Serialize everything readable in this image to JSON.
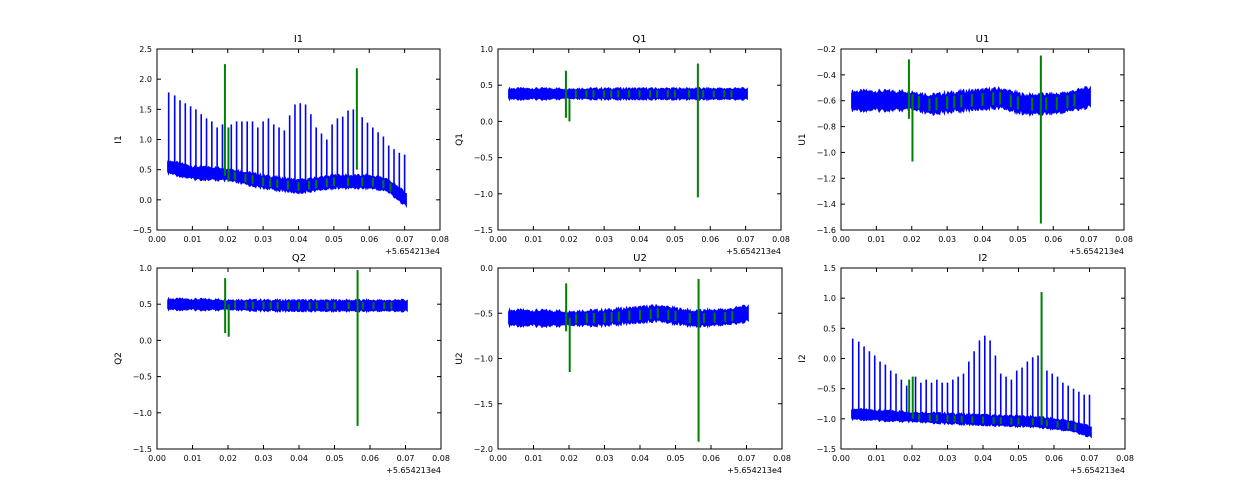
{
  "figure": {
    "background": "#ffffff",
    "series_colors": {
      "blue": "#0000ff",
      "green": "#008000"
    }
  },
  "chart_data": [
    {
      "type": "line",
      "title": "I1",
      "xlabel": "",
      "ylabel": "I1",
      "xlim": [
        0.0,
        0.08
      ],
      "ylim": [
        -0.5,
        2.5
      ],
      "xticks": [
        "0.00",
        "0.01",
        "0.02",
        "0.03",
        "0.04",
        "0.05",
        "0.06",
        "0.07",
        "0.08"
      ],
      "yticks": [
        "−0.5",
        "0.0",
        "0.5",
        "1.0",
        "1.5",
        "2.0",
        "2.5"
      ],
      "x_offset_label": "+5.654213e4",
      "grid": false,
      "series": [
        {
          "color": "#0000ff",
          "style": "band_with_spikes",
          "x_start": 0.003,
          "x_end": 0.0705,
          "baseline": [
            [
              0.003,
              0.55
            ],
            [
              0.01,
              0.45
            ],
            [
              0.02,
              0.42
            ],
            [
              0.03,
              0.3
            ],
            [
              0.04,
              0.22
            ],
            [
              0.05,
              0.3
            ],
            [
              0.06,
              0.3
            ],
            [
              0.065,
              0.25
            ],
            [
              0.0705,
              0.0
            ]
          ],
          "band_half_width": 0.1,
          "spikes": [
            [
              0.0033,
              1.78
            ],
            [
              0.005,
              1.73
            ],
            [
              0.0065,
              1.65
            ],
            [
              0.008,
              1.6
            ],
            [
              0.0095,
              1.55
            ],
            [
              0.011,
              1.5
            ],
            [
              0.0125,
              1.42
            ],
            [
              0.014,
              1.35
            ],
            [
              0.0155,
              1.3
            ],
            [
              0.017,
              1.2
            ],
            [
              0.0185,
              1.25
            ],
            [
              0.021,
              1.25
            ],
            [
              0.0225,
              1.3
            ],
            [
              0.024,
              1.3
            ],
            [
              0.0255,
              1.3
            ],
            [
              0.027,
              1.3
            ],
            [
              0.0285,
              1.2
            ],
            [
              0.03,
              1.3
            ],
            [
              0.0315,
              1.35
            ],
            [
              0.033,
              1.25
            ],
            [
              0.0345,
              1.2
            ],
            [
              0.036,
              1.15
            ],
            [
              0.0375,
              1.4
            ],
            [
              0.039,
              1.58
            ],
            [
              0.0405,
              1.6
            ],
            [
              0.042,
              1.58
            ],
            [
              0.0435,
              1.42
            ],
            [
              0.045,
              1.2
            ],
            [
              0.0465,
              1.1
            ],
            [
              0.048,
              1.0
            ],
            [
              0.0495,
              1.25
            ],
            [
              0.051,
              1.35
            ],
            [
              0.0525,
              1.38
            ],
            [
              0.054,
              1.48
            ],
            [
              0.0555,
              1.5
            ],
            [
              0.058,
              1.37
            ],
            [
              0.0595,
              1.28
            ],
            [
              0.061,
              1.2
            ],
            [
              0.0625,
              1.12
            ],
            [
              0.064,
              1.05
            ],
            [
              0.0655,
              0.9
            ],
            [
              0.067,
              0.84
            ],
            [
              0.0685,
              0.78
            ],
            [
              0.07,
              0.75
            ]
          ]
        },
        {
          "color": "#008000",
          "style": "vlines",
          "lines": [
            [
              0.0192,
              0.4,
              2.25
            ],
            [
              0.0202,
              0.3,
              1.2
            ],
            [
              0.0565,
              0.5,
              2.18
            ]
          ],
          "ticks": [
            0.022,
            0.025,
            0.027,
            0.03,
            0.032,
            0.034,
            0.037,
            0.04,
            0.043,
            0.045,
            0.048,
            0.05,
            0.054,
            0.058,
            0.061,
            0.064,
            0.066
          ]
        }
      ]
    },
    {
      "type": "line",
      "title": "Q1",
      "xlabel": "",
      "ylabel": "Q1",
      "xlim": [
        0.0,
        0.08
      ],
      "ylim": [
        -1.5,
        1.0
      ],
      "xticks": [
        "0.00",
        "0.01",
        "0.02",
        "0.03",
        "0.04",
        "0.05",
        "0.06",
        "0.07",
        "0.08"
      ],
      "yticks": [
        "−1.5",
        "−1.0",
        "−0.5",
        "0.0",
        "0.5",
        "1.0"
      ],
      "x_offset_label": "+5.654213e4",
      "grid": false,
      "series": [
        {
          "color": "#0000ff",
          "style": "band_with_spikes",
          "x_start": 0.003,
          "x_end": 0.0705,
          "baseline": [
            [
              0.003,
              0.38
            ],
            [
              0.035,
              0.38
            ],
            [
              0.0705,
              0.38
            ]
          ],
          "band_half_width": 0.07,
          "spikes": []
        },
        {
          "color": "#008000",
          "style": "vlines",
          "lines": [
            [
              0.0192,
              0.05,
              0.7
            ],
            [
              0.0202,
              0.0,
              0.3
            ],
            [
              0.0565,
              -1.05,
              0.8
            ]
          ],
          "ticks": [
            0.022,
            0.025,
            0.027,
            0.03,
            0.032,
            0.034,
            0.037,
            0.04,
            0.043,
            0.045,
            0.048,
            0.05,
            0.054,
            0.058,
            0.061,
            0.064,
            0.066
          ]
        }
      ]
    },
    {
      "type": "line",
      "title": "U1",
      "xlabel": "",
      "ylabel": "U1",
      "xlim": [
        0.0,
        0.08
      ],
      "ylim": [
        -1.6,
        -0.2
      ],
      "xticks": [
        "0.00",
        "0.01",
        "0.02",
        "0.03",
        "0.04",
        "0.05",
        "0.06",
        "0.07",
        "0.08"
      ],
      "yticks": [
        "−1.6",
        "−1.4",
        "−1.2",
        "−1.0",
        "−0.8",
        "−0.6",
        "−0.4",
        "−0.2"
      ],
      "x_offset_label": "+5.654213e4",
      "grid": false,
      "series": [
        {
          "color": "#0000ff",
          "style": "band_with_spikes",
          "x_start": 0.003,
          "x_end": 0.0705,
          "baseline": [
            [
              0.003,
              -0.6
            ],
            [
              0.02,
              -0.6
            ],
            [
              0.025,
              -0.63
            ],
            [
              0.035,
              -0.6
            ],
            [
              0.045,
              -0.58
            ],
            [
              0.052,
              -0.63
            ],
            [
              0.062,
              -0.62
            ],
            [
              0.0705,
              -0.57
            ]
          ],
          "band_half_width": 0.07,
          "spikes": []
        },
        {
          "color": "#008000",
          "style": "vlines",
          "lines": [
            [
              0.0192,
              -0.74,
              -0.28
            ],
            [
              0.0202,
              -1.07,
              -0.55
            ],
            [
              0.0565,
              -1.55,
              -0.25
            ]
          ],
          "ticks": [
            0.022,
            0.025,
            0.027,
            0.03,
            0.032,
            0.034,
            0.037,
            0.04,
            0.043,
            0.045,
            0.048,
            0.05,
            0.054,
            0.058,
            0.061,
            0.064,
            0.066
          ]
        }
      ]
    },
    {
      "type": "line",
      "title": "Q2",
      "xlabel": "",
      "ylabel": "Q2",
      "xlim": [
        0.0,
        0.08
      ],
      "ylim": [
        -1.5,
        1.0
      ],
      "xticks": [
        "0.00",
        "0.01",
        "0.02",
        "0.03",
        "0.04",
        "0.05",
        "0.06",
        "0.07",
        "0.08"
      ],
      "yticks": [
        "−1.5",
        "−1.0",
        "−0.5",
        "0.0",
        "0.5",
        "1.0"
      ],
      "x_offset_label": "+5.654213e4",
      "grid": false,
      "series": [
        {
          "color": "#0000ff",
          "style": "band_with_spikes",
          "x_start": 0.003,
          "x_end": 0.0705,
          "baseline": [
            [
              0.003,
              0.5
            ],
            [
              0.035,
              0.48
            ],
            [
              0.0705,
              0.48
            ]
          ],
          "band_half_width": 0.07,
          "spikes": []
        },
        {
          "color": "#008000",
          "style": "vlines",
          "lines": [
            [
              0.0192,
              0.1,
              0.86
            ],
            [
              0.0202,
              0.05,
              0.5
            ],
            [
              0.0565,
              -1.18,
              0.97
            ]
          ],
          "ticks": [
            0.022,
            0.025,
            0.027,
            0.03,
            0.032,
            0.034,
            0.037,
            0.04,
            0.043,
            0.045,
            0.048,
            0.05,
            0.054,
            0.058,
            0.061,
            0.064,
            0.066
          ]
        }
      ]
    },
    {
      "type": "line",
      "title": "U2",
      "xlabel": "",
      "ylabel": "U2",
      "xlim": [
        0.0,
        0.08
      ],
      "ylim": [
        -2.0,
        0.0
      ],
      "xticks": [
        "0.00",
        "0.01",
        "0.02",
        "0.03",
        "0.04",
        "0.05",
        "0.06",
        "0.07",
        "0.08"
      ],
      "yticks": [
        "−2.0",
        "−1.5",
        "−1.0",
        "−0.5",
        "0.0"
      ],
      "x_offset_label": "+5.654213e4",
      "grid": false,
      "series": [
        {
          "color": "#0000ff",
          "style": "band_with_spikes",
          "x_start": 0.003,
          "x_end": 0.0705,
          "baseline": [
            [
              0.003,
              -0.55
            ],
            [
              0.02,
              -0.56
            ],
            [
              0.03,
              -0.55
            ],
            [
              0.045,
              -0.5
            ],
            [
              0.055,
              -0.56
            ],
            [
              0.065,
              -0.54
            ],
            [
              0.0705,
              -0.5
            ]
          ],
          "band_half_width": 0.08,
          "spikes": []
        },
        {
          "color": "#008000",
          "style": "vlines",
          "lines": [
            [
              0.0192,
              -0.7,
              -0.17
            ],
            [
              0.0202,
              -1.15,
              -0.55
            ],
            [
              0.0565,
              -1.92,
              -0.12
            ]
          ],
          "ticks": [
            0.022,
            0.025,
            0.027,
            0.03,
            0.032,
            0.034,
            0.037,
            0.04,
            0.043,
            0.045,
            0.048,
            0.05,
            0.054,
            0.058,
            0.061,
            0.064,
            0.066
          ]
        }
      ]
    },
    {
      "type": "line",
      "title": "I2",
      "xlabel": "",
      "ylabel": "I2",
      "xlim": [
        0.0,
        0.08
      ],
      "ylim": [
        -1.5,
        1.5
      ],
      "xticks": [
        "0.00",
        "0.01",
        "0.02",
        "0.03",
        "0.04",
        "0.05",
        "0.06",
        "0.07",
        "0.08"
      ],
      "yticks": [
        "−1.5",
        "−1.0",
        "−0.5",
        "0.0",
        "0.5",
        "1.0",
        "1.5"
      ],
      "x_offset_label": "+5.654213e4",
      "grid": false,
      "series": [
        {
          "color": "#0000ff",
          "style": "band_with_spikes",
          "x_start": 0.003,
          "x_end": 0.0705,
          "baseline": [
            [
              0.003,
              -0.92
            ],
            [
              0.02,
              -0.97
            ],
            [
              0.04,
              -1.02
            ],
            [
              0.055,
              -1.05
            ],
            [
              0.065,
              -1.12
            ],
            [
              0.0705,
              -1.22
            ]
          ],
          "band_half_width": 0.08,
          "spikes": [
            [
              0.0033,
              0.33
            ],
            [
              0.005,
              0.28
            ],
            [
              0.0065,
              0.2
            ],
            [
              0.008,
              0.12
            ],
            [
              0.0095,
              0.05
            ],
            [
              0.011,
              -0.05
            ],
            [
              0.0125,
              -0.1
            ],
            [
              0.014,
              -0.2
            ],
            [
              0.0155,
              -0.25
            ],
            [
              0.017,
              -0.35
            ],
            [
              0.0185,
              -0.45
            ],
            [
              0.021,
              -0.3
            ],
            [
              0.0225,
              -0.4
            ],
            [
              0.024,
              -0.35
            ],
            [
              0.0255,
              -0.4
            ],
            [
              0.027,
              -0.35
            ],
            [
              0.0285,
              -0.4
            ],
            [
              0.03,
              -0.4
            ],
            [
              0.0315,
              -0.35
            ],
            [
              0.033,
              -0.3
            ],
            [
              0.0345,
              -0.25
            ],
            [
              0.036,
              -0.05
            ],
            [
              0.0375,
              0.12
            ],
            [
              0.039,
              0.3
            ],
            [
              0.0405,
              0.38
            ],
            [
              0.042,
              0.3
            ],
            [
              0.0435,
              0.05
            ],
            [
              0.045,
              -0.25
            ],
            [
              0.0465,
              -0.3
            ],
            [
              0.048,
              -0.35
            ],
            [
              0.0495,
              -0.2
            ],
            [
              0.051,
              -0.15
            ],
            [
              0.0525,
              -0.05
            ],
            [
              0.054,
              0.02
            ],
            [
              0.0555,
              0.05
            ],
            [
              0.058,
              -0.2
            ],
            [
              0.0595,
              -0.25
            ],
            [
              0.061,
              -0.3
            ],
            [
              0.0625,
              -0.4
            ],
            [
              0.064,
              -0.45
            ],
            [
              0.0655,
              -0.5
            ],
            [
              0.067,
              -0.55
            ],
            [
              0.0685,
              -0.6
            ],
            [
              0.07,
              -0.6
            ]
          ]
        },
        {
          "color": "#008000",
          "style": "vlines",
          "lines": [
            [
              0.0192,
              -0.9,
              -0.35
            ],
            [
              0.0202,
              -1.0,
              -0.3
            ],
            [
              0.0565,
              -1.1,
              1.1
            ]
          ],
          "ticks": [
            0.022,
            0.025,
            0.027,
            0.03,
            0.032,
            0.034,
            0.037,
            0.04,
            0.043,
            0.045,
            0.048,
            0.05,
            0.054,
            0.058,
            0.061,
            0.064,
            0.066
          ]
        }
      ]
    }
  ]
}
